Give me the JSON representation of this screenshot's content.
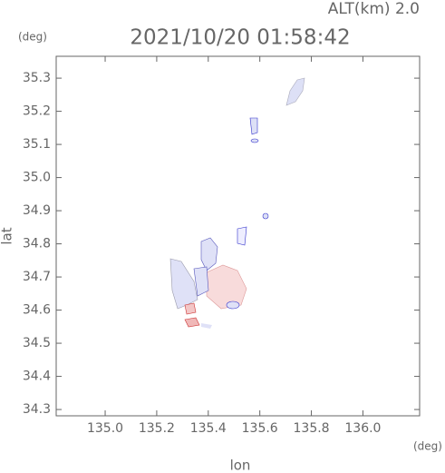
{
  "chart_data": {
    "type": "map",
    "title": "2021/10/20 01:58:42",
    "subtitle": "ALT(km) 2.0",
    "x_label": "lon",
    "y_label": "lat",
    "x_unit": "(deg)",
    "y_unit": "(deg)",
    "xlim": [
      134.81,
      136.22
    ],
    "ylim": [
      34.281,
      35.366
    ],
    "xticks": [
      {
        "value": 135,
        "label": "135.0"
      },
      135.2,
      135.4,
      135.6,
      135.8,
      {
        "value": 136,
        "label": "136.0"
      }
    ],
    "yticks": [
      34.3,
      34.4,
      34.5,
      34.6,
      34.7,
      34.8,
      34.9,
      {
        "value": 35,
        "label": "35.0"
      },
      35.1,
      35.2,
      35.3
    ]
  }
}
